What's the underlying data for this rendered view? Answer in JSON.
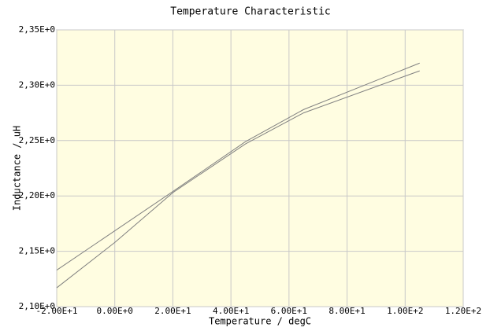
{
  "chart_data": {
    "type": "line",
    "title": "Temperature Characteristic",
    "x_label": "Temperature / degC",
    "y_label": "Inductance / uH",
    "grid": true,
    "plot_background": "#fffde1",
    "series": [
      {
        "color": "#808080",
        "x": [
          -20,
          20,
          45,
          65,
          105
        ],
        "values": [
          2.133,
          2.204,
          2.249,
          2.278,
          2.32
        ]
      },
      {
        "color": "#808080",
        "x": [
          -20,
          0,
          20,
          45,
          65,
          105
        ],
        "values": [
          2.117,
          2.158,
          2.203,
          2.247,
          2.275,
          2.313
        ]
      }
    ],
    "xlim": [
      -20,
      120
    ],
    "xticks": [
      {
        "value": -20,
        "label": "-2.00E+1"
      },
      {
        "value": 0,
        "label": "0.00E+0"
      },
      {
        "value": 20,
        "label": "2.00E+1"
      },
      {
        "value": 40,
        "label": "4.00E+1"
      },
      {
        "value": 60,
        "label": "6.00E+1"
      },
      {
        "value": 80,
        "label": "8.00E+1"
      },
      {
        "value": 100,
        "label": "1.00E+2"
      },
      {
        "value": 120,
        "label": "1.20E+2"
      }
    ],
    "ylim": [
      2.1,
      2.35
    ],
    "yticks": [
      {
        "value": 2.1,
        "label": "2,10E+0"
      },
      {
        "value": 2.15,
        "label": "2,15E+0"
      },
      {
        "value": 2.2,
        "label": "2,20E+0"
      },
      {
        "value": 2.25,
        "label": "2,25E+0"
      },
      {
        "value": 2.3,
        "label": "2,30E+0"
      },
      {
        "value": 2.35,
        "label": "2,35E+0"
      }
    ]
  }
}
